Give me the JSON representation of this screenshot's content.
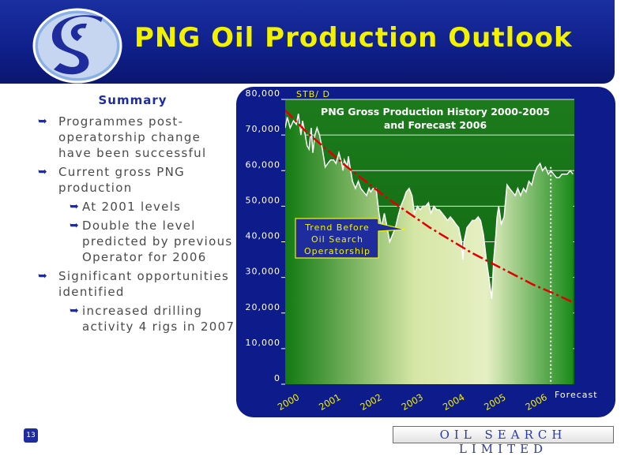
{
  "header": {
    "title": "PNG Oil Production Outlook",
    "colors": {
      "background": "#0f1f8a",
      "title": "#f2f200"
    }
  },
  "summary": {
    "heading": "Summary",
    "bullets": [
      "Programmes post-operatorship change have been successful",
      "Current gross PNG production",
      "At 2001 levels",
      "Double the level predicted by previous Operator for 2006",
      "Significant opportunities identified",
      "increased drilling activity 4 rigs in 2007"
    ]
  },
  "footer": {
    "page_number": "13",
    "company_logo_text": "OIL SEARCH LIMITED"
  },
  "chart_data": {
    "type": "area",
    "title": "PNG Gross Production History 2000-2005 and Forecast 2006",
    "title_lines": [
      "PNG Gross Production History 2000-2005",
      "and Forecast 2006"
    ],
    "ylabel": "STB/ D",
    "ylim": [
      0,
      80000
    ],
    "yticks": [
      0,
      10000,
      20000,
      30000,
      40000,
      50000,
      60000,
      70000,
      80000
    ],
    "ytick_labels": [
      "0",
      "10,000",
      "20,000",
      "30,000",
      "40,000",
      "50,000",
      "60,000",
      "70,000",
      "80,000"
    ],
    "xlim": [
      2000,
      2007
    ],
    "xtick_labels": [
      "2000",
      "2001",
      "2002",
      "2003",
      "2004",
      "2005",
      "2006"
    ],
    "grid": true,
    "forecast_label": "Forecast",
    "forecast_start": 2006.43,
    "annotation": [
      "Trend Before",
      "Oil Search",
      "Operatorship"
    ],
    "series": [
      {
        "values_x": [
          2000.0,
          2000.05,
          2000.12,
          2000.2,
          2000.27,
          2000.32,
          2000.38,
          2000.42,
          2000.47,
          2000.53,
          2000.58,
          2000.63,
          2000.67,
          2000.72,
          2000.77,
          2000.83,
          2000.9,
          2000.97,
          2001.03,
          2001.1,
          2001.17,
          2001.23,
          2001.3,
          2001.37,
          2001.4,
          2001.43,
          2001.47,
          2001.5,
          2001.53,
          2001.57,
          2001.63,
          2001.7,
          2001.77,
          2001.83,
          2001.9,
          2001.97,
          2002.03,
          2002.07,
          2002.13,
          2002.2,
          2002.27,
          2002.33,
          2002.4,
          2002.47,
          2002.53,
          2002.6,
          2002.67,
          2002.73,
          2002.8,
          2002.87,
          2002.93,
          2003.0,
          2003.07,
          2003.13,
          2003.2,
          2003.27,
          2003.33,
          2003.4,
          2003.47,
          2003.53,
          2003.6,
          2003.67,
          2003.73,
          2003.8,
          2003.87,
          2003.93,
          2004.0,
          2004.07,
          2004.13,
          2004.2,
          2004.27,
          2004.3,
          2004.33,
          2004.4,
          2004.47,
          2004.53,
          2004.6,
          2004.67,
          2004.73,
          2004.8,
          2004.87,
          2004.93,
          2005.0,
          2005.05,
          2005.1,
          2005.13,
          2005.17,
          2005.23,
          2005.3,
          2005.37,
          2005.43,
          2005.5,
          2005.57,
          2005.63,
          2005.7,
          2005.77,
          2005.83,
          2005.9,
          2005.97,
          2006.03,
          2006.1,
          2006.17,
          2006.23,
          2006.3,
          2006.37,
          2006.43,
          2006.5,
          2006.57,
          2006.63,
          2006.7,
          2006.77,
          2006.83,
          2006.9,
          2006.97
        ],
        "values_y": [
          72000,
          75000,
          72000,
          74000,
          73000,
          76000,
          70000,
          74000,
          71000,
          67000,
          66000,
          72000,
          65000,
          70000,
          72000,
          70000,
          66000,
          61000,
          62000,
          63000,
          63000,
          62000,
          65000,
          62000,
          60000,
          63000,
          62000,
          61000,
          64000,
          61000,
          57000,
          55000,
          57000,
          55000,
          54000,
          53000,
          55000,
          54000,
          55000,
          55000,
          48000,
          44000,
          48000,
          44000,
          40000,
          42000,
          44000,
          47000,
          50000,
          52000,
          54000,
          55000,
          53000,
          48000,
          50000,
          49000,
          50000,
          50000,
          51000,
          48000,
          50000,
          49000,
          49000,
          48000,
          47000,
          46000,
          47000,
          46000,
          45000,
          44000,
          40000,
          35000,
          40000,
          44000,
          45000,
          46000,
          46000,
          47000,
          46000,
          42000,
          35000,
          30000,
          24000,
          35000,
          42000,
          47000,
          50000,
          45000,
          47000,
          56000,
          55000,
          54000,
          53000,
          55000,
          53000,
          55000,
          54000,
          57000,
          56000,
          59000,
          61000,
          62000,
          60000,
          61000,
          59000,
          60000,
          59000,
          58000,
          58000,
          59000,
          59000,
          59000,
          60000,
          59000
        ]
      },
      {
        "style": "dash-dot",
        "color": "#e00000",
        "values_x": [
          2000.0,
          2000.5,
          2001.0,
          2001.5,
          2002.0,
          2002.5,
          2003.0,
          2003.5,
          2004.0,
          2004.5,
          2005.0,
          2005.5,
          2006.0,
          2006.5,
          2006.97
        ],
        "values_y": [
          77000,
          71000,
          66000,
          61000,
          56500,
          52000,
          48000,
          44000,
          40500,
          37000,
          34000,
          31000,
          28000,
          25500,
          23000
        ]
      }
    ]
  }
}
